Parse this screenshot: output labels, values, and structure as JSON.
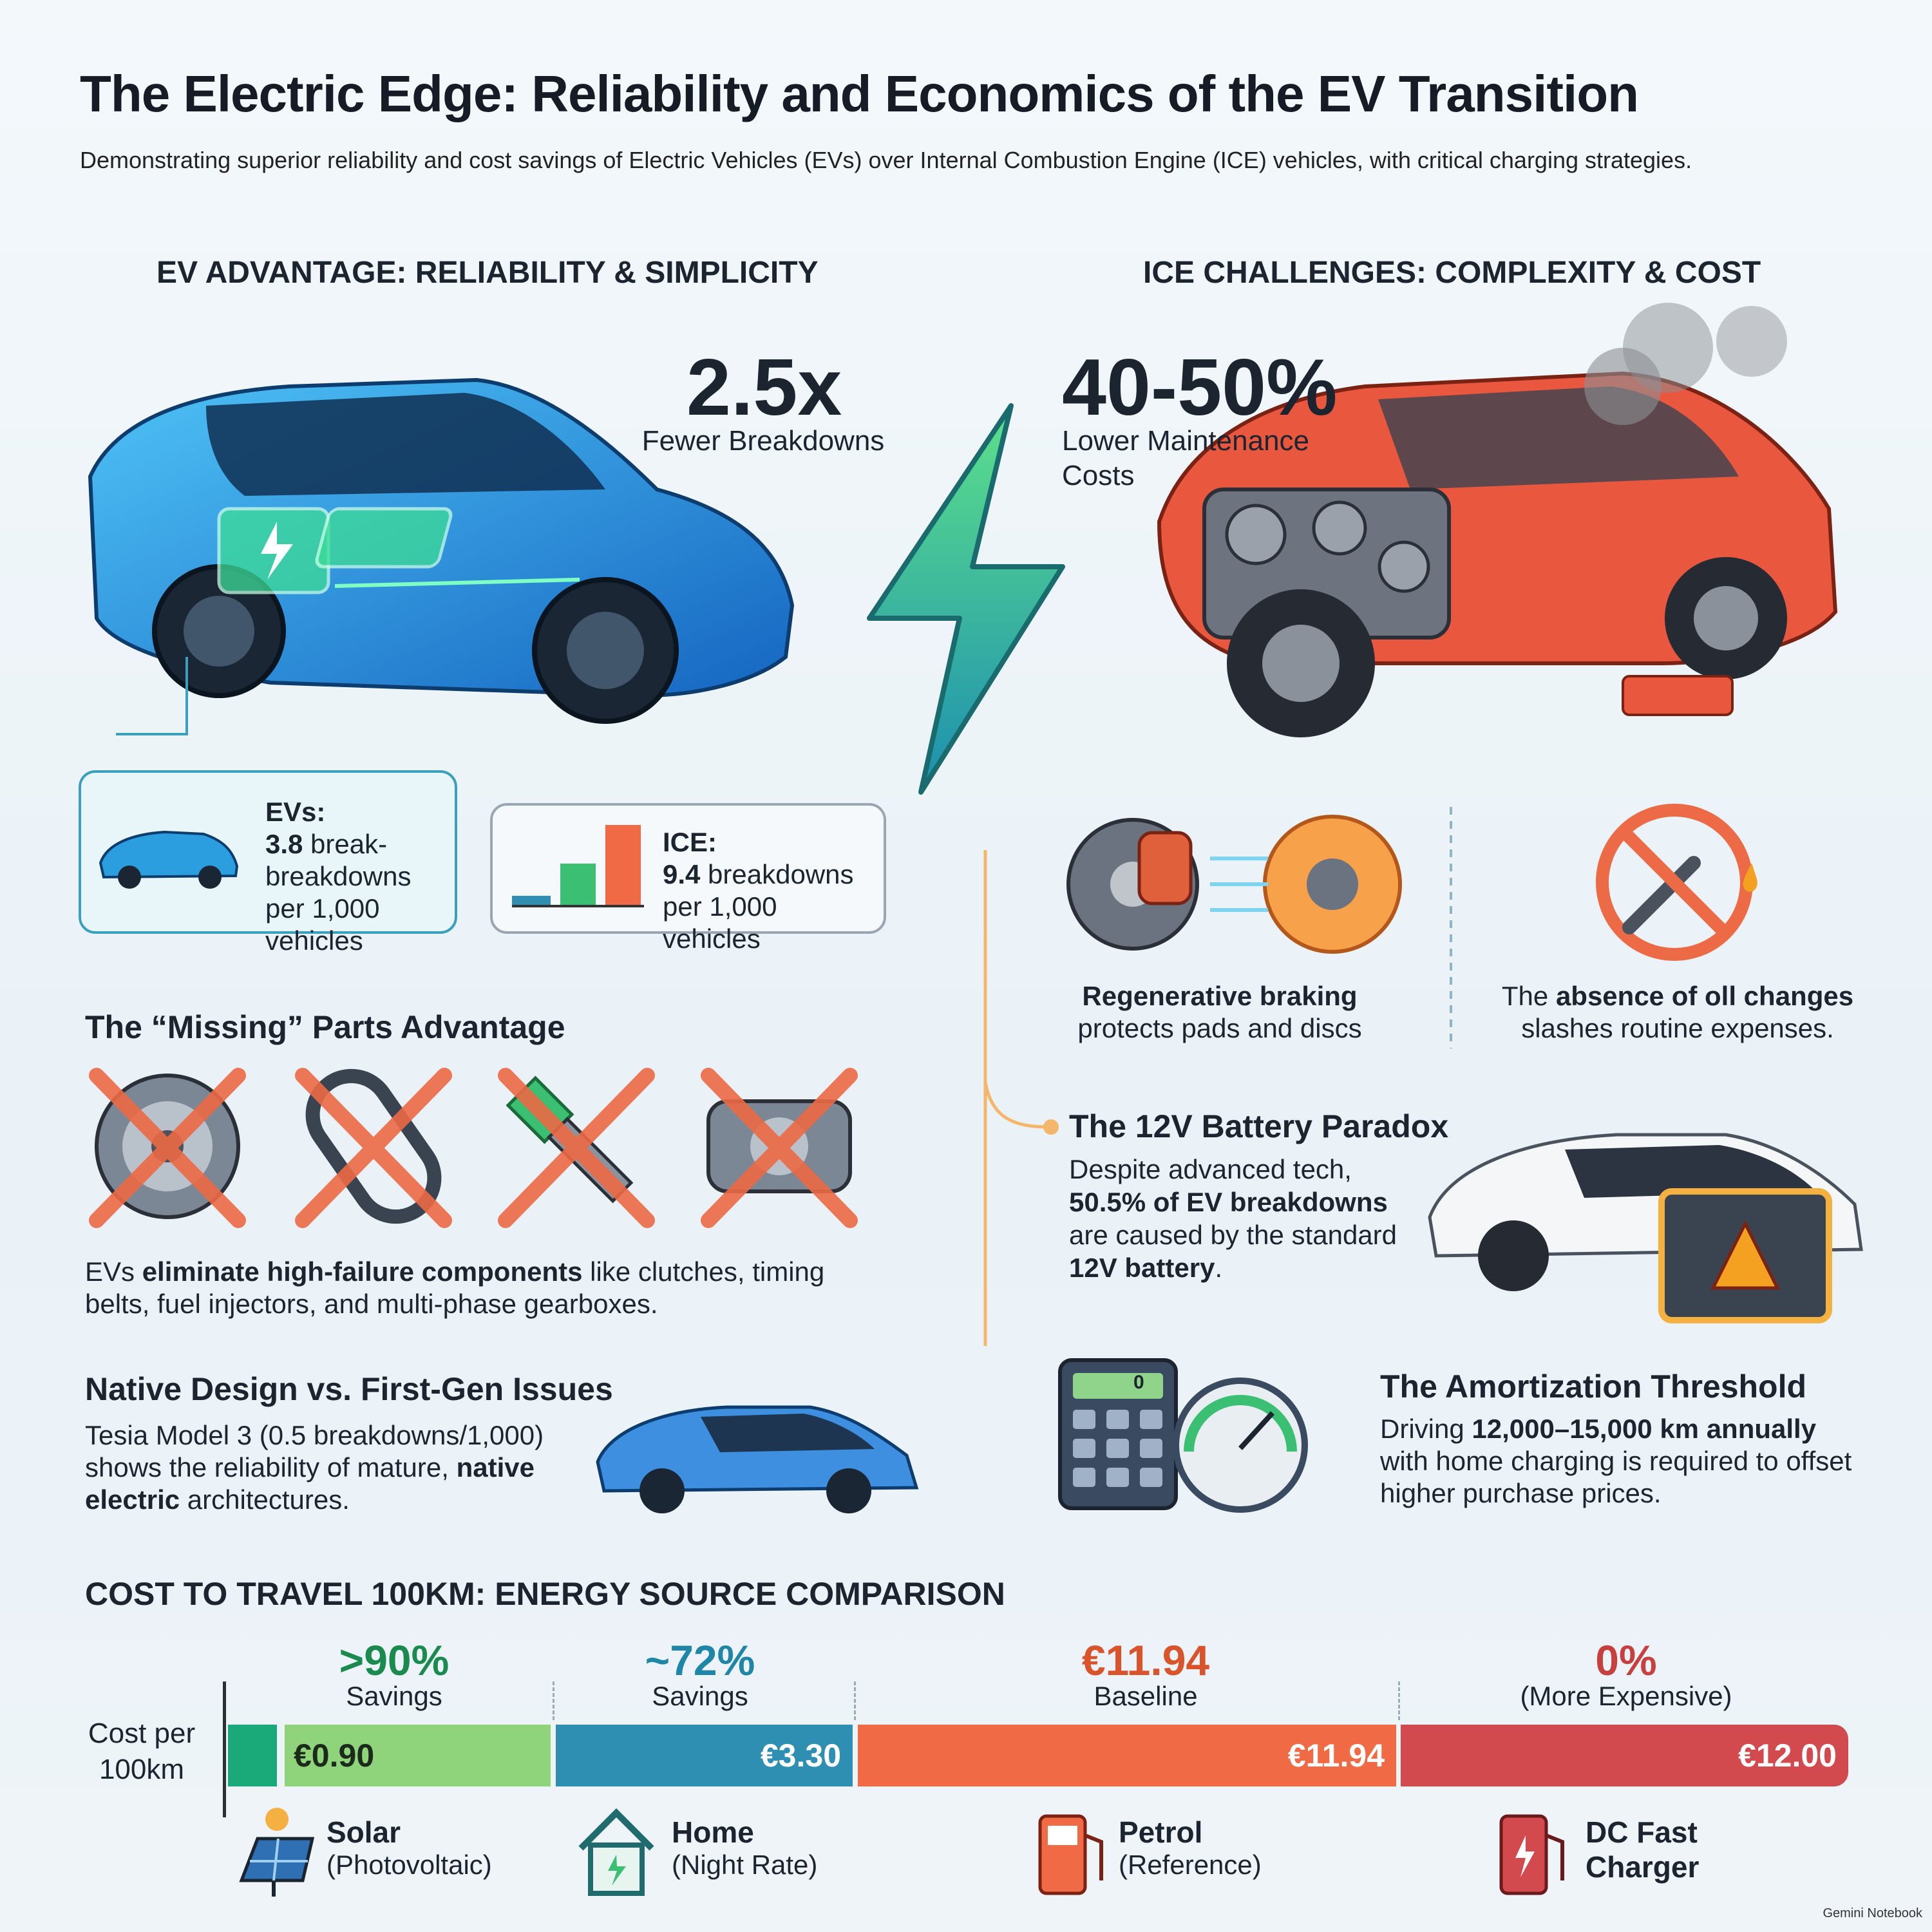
{
  "header": {
    "title": "The Electric Edge: Reliability and Economics of the EV Transition",
    "subtitle": "Demonstrating superior reliability and cost savings of Electric Vehicles (EVs) over Internal Combustion Engine (ICE) vehicles, with critical charging strategies."
  },
  "ev": {
    "heading": "EV ADVANTAGE: RELIABILITY & SIMPLICITY",
    "stat": "2.5x",
    "stat_label": "Fewer Breakdowns",
    "callout_ev": {
      "label": "EVs:",
      "value": "3.8",
      "text": " break- breakdowns per 1,000 vehicles"
    },
    "callout_ice": {
      "label": "ICE:",
      "value": "9.4",
      "text": " breakdowns per 1,000 vehicles"
    }
  },
  "ice": {
    "heading": "ICE CHALLENGES: COMPLEXITY & COST",
    "stat": "40-50%",
    "stat_label": "Lower Maintenance Costs",
    "braking": {
      "strong": "Regenerative braking",
      "post": "protects pads and discs"
    },
    "oil": {
      "pre": "The ",
      "strong": "absence of oll changes",
      "post": " slashes routine expenses."
    }
  },
  "missing": {
    "heading": "The “Missing” Parts Advantage",
    "pre": "EVs ",
    "strong": "eliminate high-failure components",
    "post": " like clutches, timing belts, fuel injectors, and multi-phase gearboxes."
  },
  "native": {
    "heading": "Native Design vs. First-Gen Issues",
    "pre": "Tesia Model 3 (0.5 breakdowns/1,000) shows the reliability of mature, ",
    "strong": "native electric",
    "post": " architectures."
  },
  "battery": {
    "heading": "The 12V Battery Paradox",
    "pre": "Despite advanced tech, ",
    "strong": "50.5% of EV breakdowns",
    "mid": " are caused by the standard ",
    "strong2": "12V battery",
    "post": "."
  },
  "amortization": {
    "heading": "The Amortization Threshold",
    "pre": "Driving ",
    "strong": "12,000–15,000 km annually",
    "post": " with home charging is required to offset higher purchase prices.",
    "calculator_display": "0"
  },
  "cost": {
    "heading": "COST TO TRAVEL 100KM: ENERGY SOURCE COMPARISON",
    "axis_label": "Cost per 100km",
    "segments": [
      {
        "headline": ">90%",
        "note": "Savings",
        "price": "€0.90",
        "name": "Solar",
        "sub": "(Photovoltaic)"
      },
      {
        "headline": "~72%",
        "note": "Savings",
        "price": "€3.30",
        "name": "Home",
        "sub": "(Night Rate)"
      },
      {
        "headline": "€11.94",
        "note": "Baseline",
        "price": "€11.94",
        "name": "Petrol",
        "sub": "(Reference)"
      },
      {
        "headline": "0%",
        "note": "(More Expensive)",
        "price": "€12.00",
        "name": "DC Fast Charger"
      }
    ]
  },
  "footer": "Gemini Notebook"
}
